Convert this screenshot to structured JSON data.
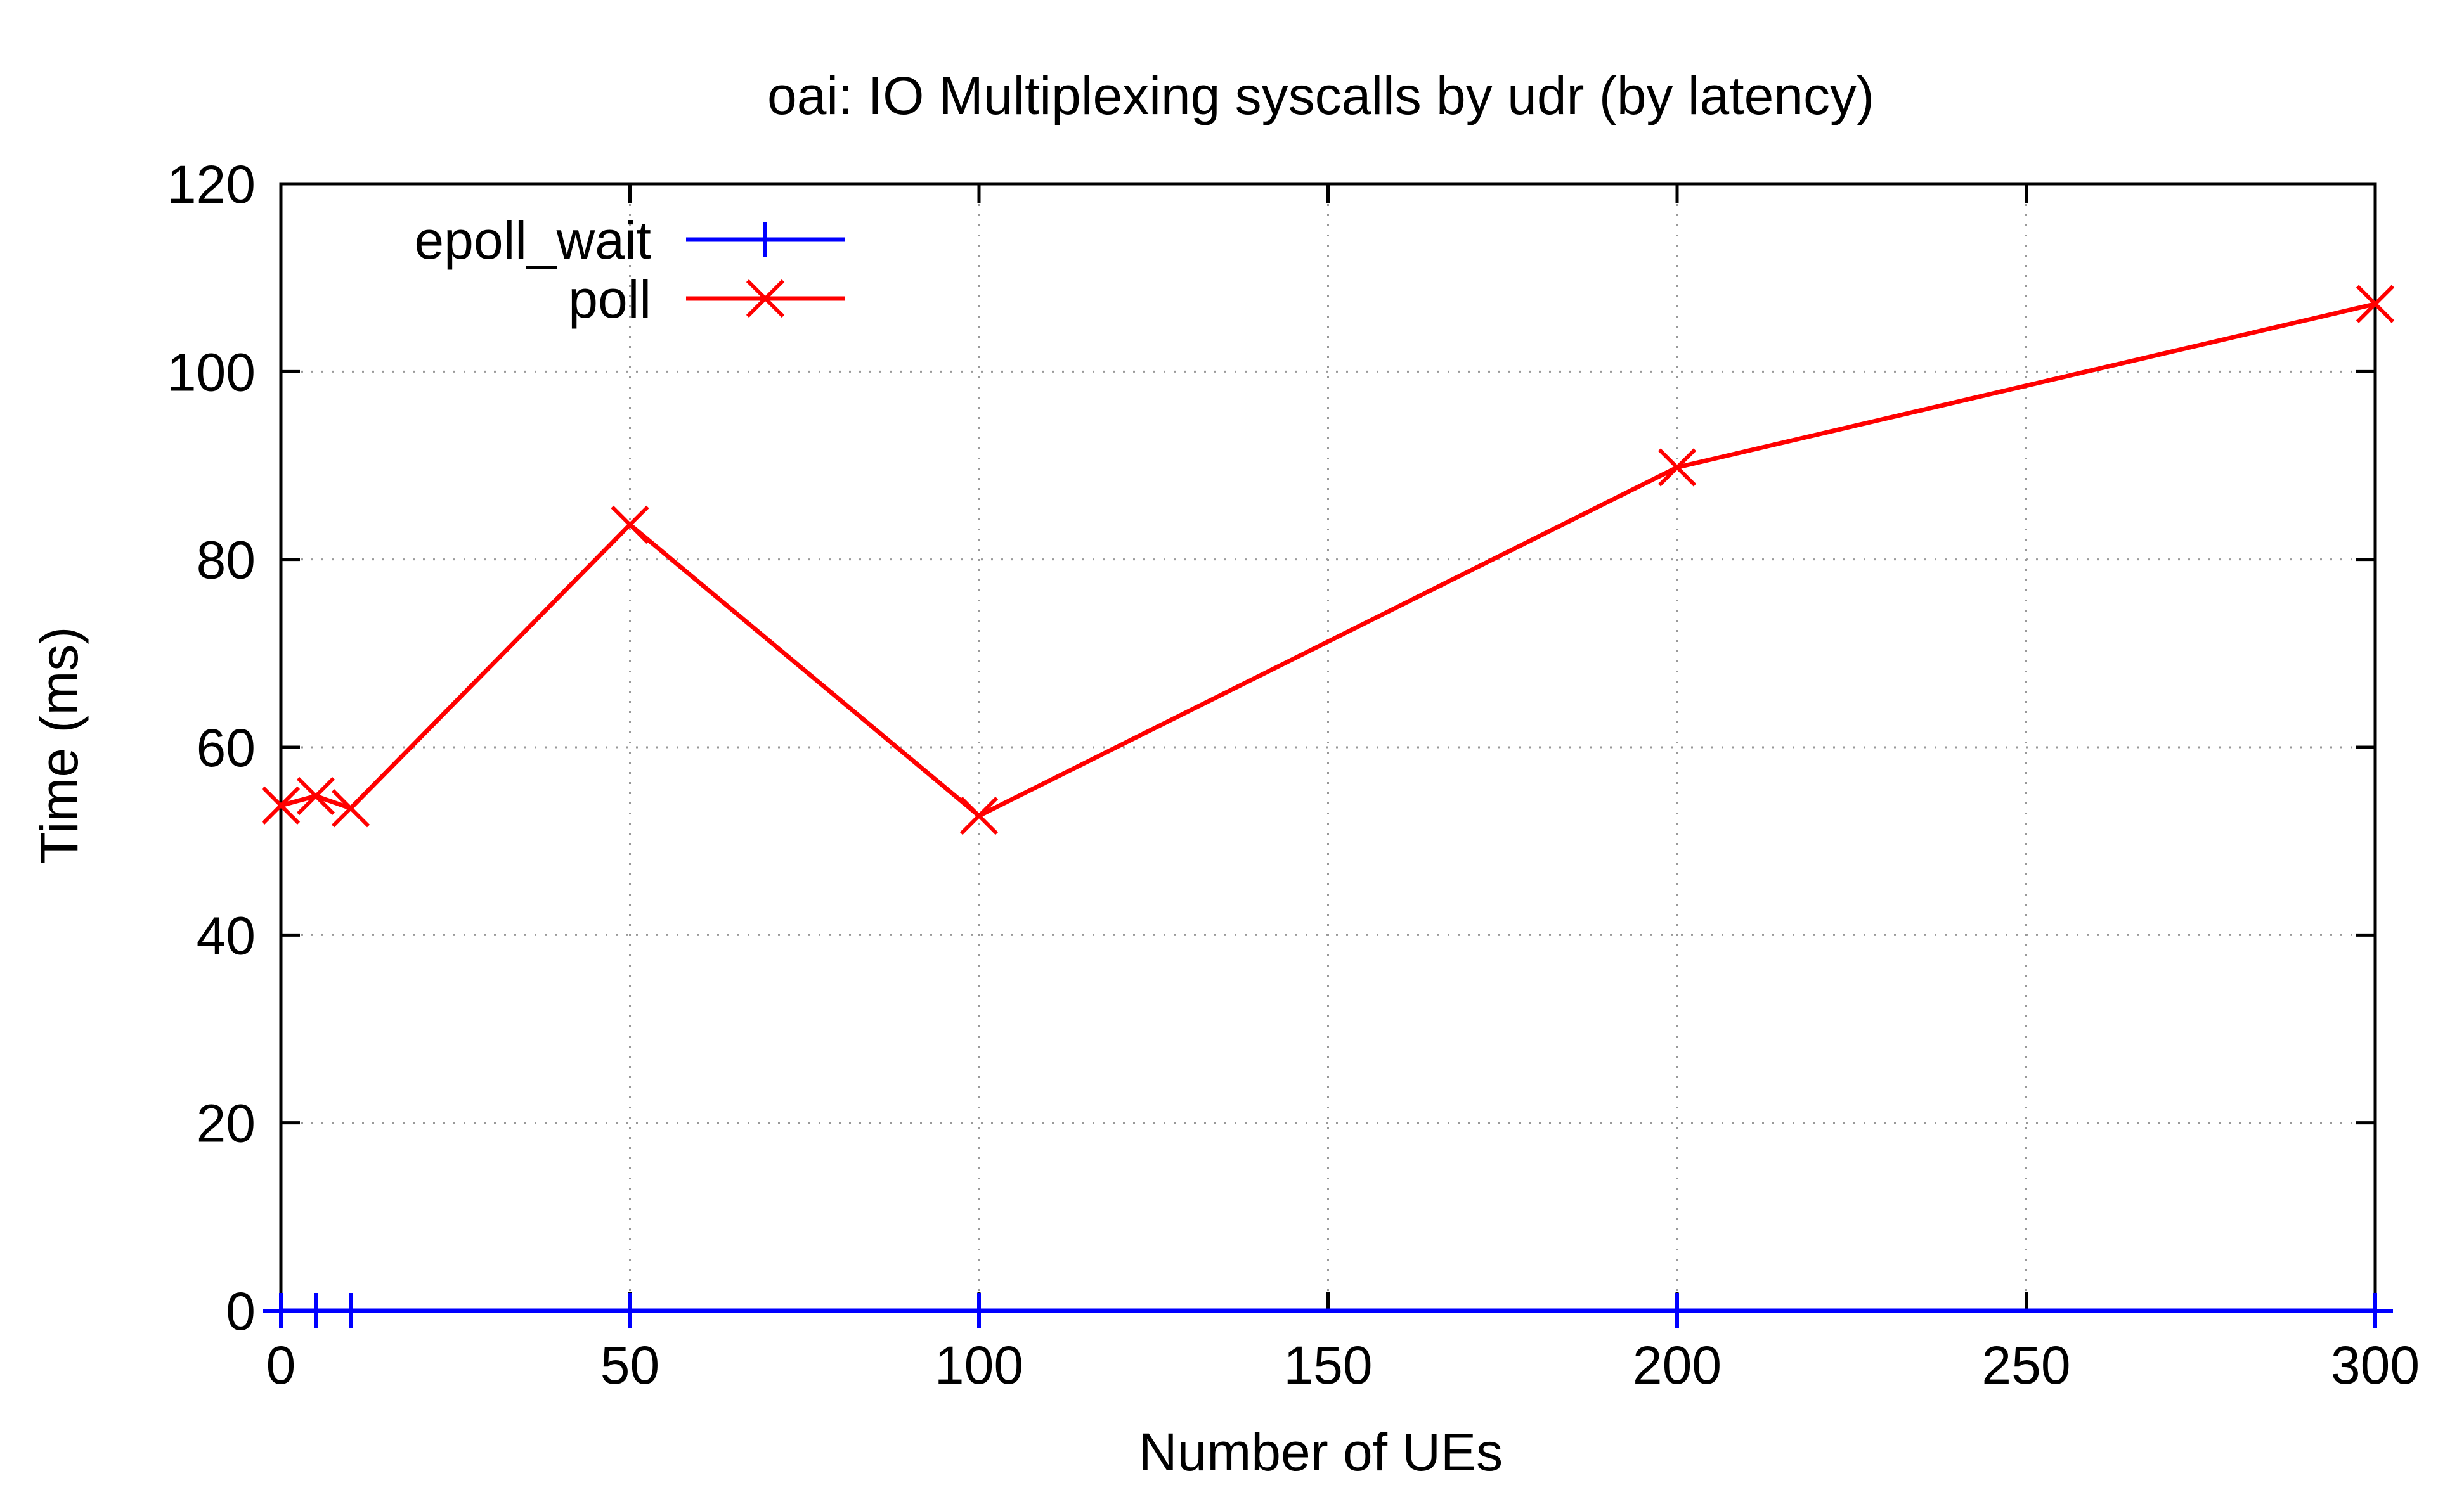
{
  "chart_data": {
    "type": "line",
    "title": "oai: IO Multiplexing syscalls by udr (by latency)",
    "xlabel": "Number of UEs",
    "ylabel": "Time (ms)",
    "xlim": [
      0,
      300
    ],
    "ylim": [
      0,
      120
    ],
    "xticks": [
      "0",
      "50",
      "100",
      "150",
      "200",
      "250",
      "300"
    ],
    "yticks": [
      "0",
      "20",
      "40",
      "60",
      "80",
      "100",
      "120"
    ],
    "grid": true,
    "legend_position": "top-left",
    "series": [
      {
        "name": "epoll_wait",
        "color": "#0000ff",
        "marker": "plus",
        "points": [
          [
            0,
            0
          ],
          [
            5,
            0
          ],
          [
            10,
            0
          ],
          [
            50,
            0
          ],
          [
            100,
            0
          ],
          [
            200,
            0
          ],
          [
            300,
            0
          ]
        ]
      },
      {
        "name": "poll",
        "color": "#ff0000",
        "marker": "cross",
        "points": [
          [
            0,
            53.8
          ],
          [
            5,
            54.8
          ],
          [
            10,
            53.5
          ],
          [
            50,
            83.7
          ],
          [
            100,
            52.7
          ],
          [
            200,
            89.8
          ],
          [
            300,
            107.2
          ]
        ]
      }
    ]
  }
}
